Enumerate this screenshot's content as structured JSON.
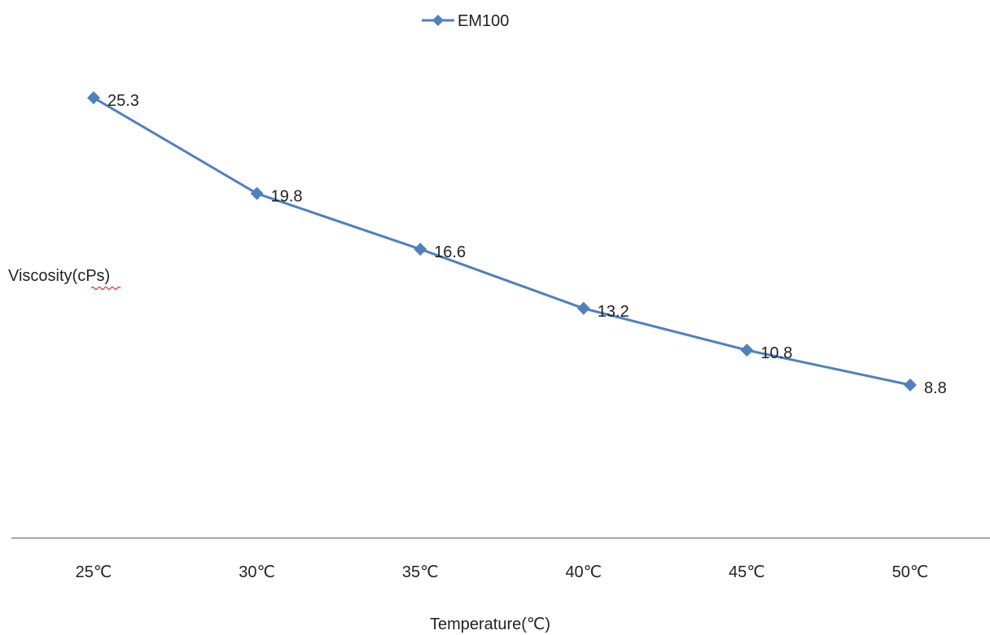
{
  "chart_data": {
    "type": "line",
    "title": "",
    "xlabel": "Temperature(℃)",
    "ylabel": "Viscosity(cPs)",
    "categories": [
      "25℃",
      "30℃",
      "35℃",
      "40℃",
      "45℃",
      "50℃"
    ],
    "series": [
      {
        "name": "EM100",
        "values": [
          25.3,
          19.8,
          16.6,
          13.2,
          10.8,
          8.8
        ],
        "data_labels": [
          "25.3",
          "19.8",
          "16.6",
          "13.2",
          "10.8",
          "8.8"
        ],
        "color": "#4f81bd",
        "marker": "diamond"
      }
    ],
    "ylim": [
      0,
      35
    ],
    "grid": false,
    "y_axis_visible": false,
    "legend_position": "top"
  }
}
